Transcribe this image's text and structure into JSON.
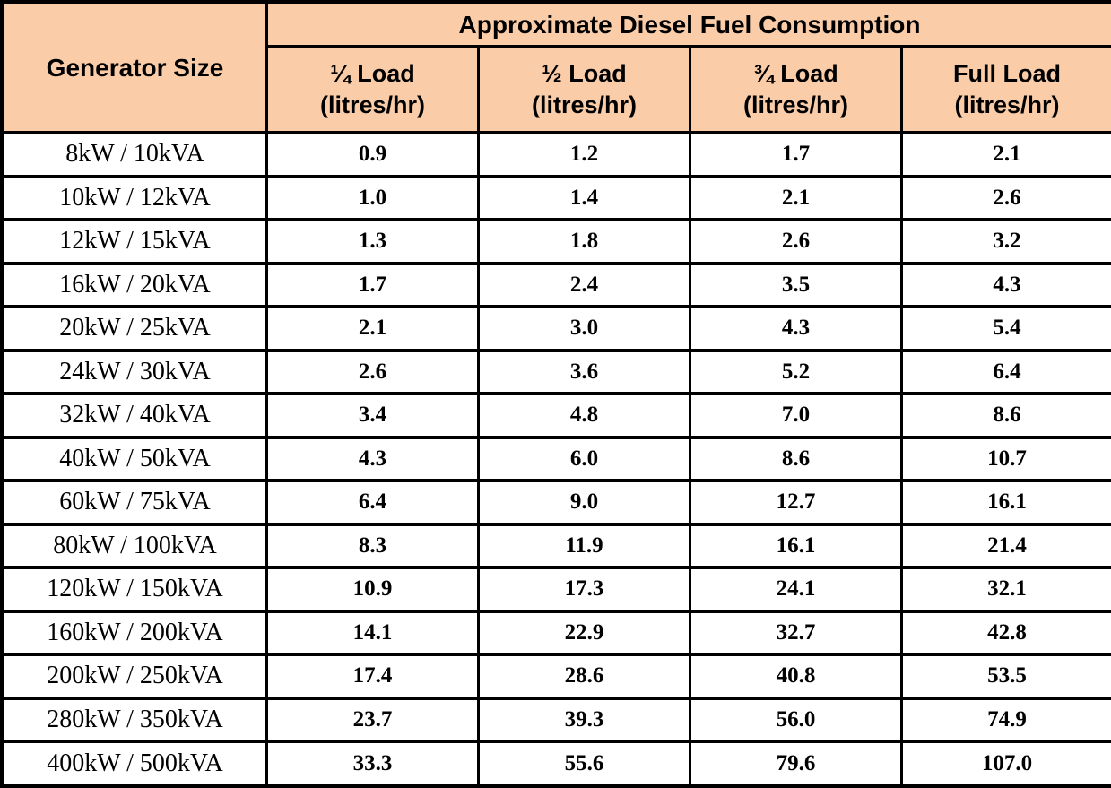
{
  "table": {
    "title": "Approximate Diesel Fuel Consumption",
    "corner_header": "Generator Size",
    "columns": [
      {
        "load": "¼ Load",
        "unit": "(litres/hr)"
      },
      {
        "load": "½ Load",
        "unit": "(litres/hr)"
      },
      {
        "load": "¾ Load",
        "unit": "(litres/hr)"
      },
      {
        "load": "Full Load",
        "unit": "(litres/hr)"
      }
    ],
    "rows": [
      {
        "size": "8kW / 10kVA",
        "values": [
          "0.9",
          "1.2",
          "1.7",
          "2.1"
        ]
      },
      {
        "size": "10kW / 12kVA",
        "values": [
          "1.0",
          "1.4",
          "2.1",
          "2.6"
        ]
      },
      {
        "size": "12kW / 15kVA",
        "values": [
          "1.3",
          "1.8",
          "2.6",
          "3.2"
        ]
      },
      {
        "size": "16kW / 20kVA",
        "values": [
          "1.7",
          "2.4",
          "3.5",
          "4.3"
        ]
      },
      {
        "size": "20kW / 25kVA",
        "values": [
          "2.1",
          "3.0",
          "4.3",
          "5.4"
        ]
      },
      {
        "size": "24kW / 30kVA",
        "values": [
          "2.6",
          "3.6",
          "5.2",
          "6.4"
        ]
      },
      {
        "size": "32kW / 40kVA",
        "values": [
          "3.4",
          "4.8",
          "7.0",
          "8.6"
        ]
      },
      {
        "size": "40kW / 50kVA",
        "values": [
          "4.3",
          "6.0",
          "8.6",
          "10.7"
        ]
      },
      {
        "size": "60kW / 75kVA",
        "values": [
          "6.4",
          "9.0",
          "12.7",
          "16.1"
        ]
      },
      {
        "size": "80kW / 100kVA",
        "values": [
          "8.3",
          "11.9",
          "16.1",
          "21.4"
        ]
      },
      {
        "size": "120kW / 150kVA",
        "values": [
          "10.9",
          "17.3",
          "24.1",
          "32.1"
        ]
      },
      {
        "size": "160kW / 200kVA",
        "values": [
          "14.1",
          "22.9",
          "32.7",
          "42.8"
        ]
      },
      {
        "size": "200kW / 250kVA",
        "values": [
          "17.4",
          "28.6",
          "40.8",
          "53.5"
        ]
      },
      {
        "size": "280kW / 350kVA",
        "values": [
          "23.7",
          "39.3",
          "56.0",
          "74.9"
        ]
      },
      {
        "size": "400kW / 500kVA",
        "values": [
          "33.3",
          "55.6",
          "79.6",
          "107.0"
        ]
      }
    ]
  },
  "colors": {
    "header_bg": "#FACDA8",
    "border": "#000000",
    "text": "#000000",
    "page_bg": "#FFFFFF"
  }
}
